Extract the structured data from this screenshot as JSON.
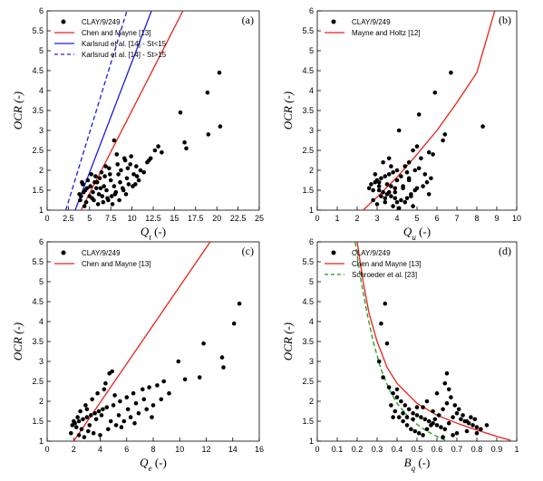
{
  "chart_data": [
    {
      "type": "scatter",
      "panel_label": "(a)",
      "xlabel": "Q_t (-)",
      "xlabel_main": "Q",
      "xlabel_sub": "t",
      "xlabel_unit": " (-)",
      "ylabel": "OCR (-)",
      "xlim": [
        0,
        25
      ],
      "ylim": [
        1,
        6
      ],
      "xticks": [
        "0",
        "2.5",
        "5",
        "7.5",
        "10",
        "12.5",
        "15",
        "17.5",
        "20",
        "22.5",
        "25"
      ],
      "yticks": [
        "1",
        "1.5",
        "2",
        "2.5",
        "3",
        "3.5",
        "4",
        "4.5",
        "5",
        "5.5",
        "6"
      ],
      "legend_position": "top-left",
      "series": [
        {
          "name": "CLAY/9/249",
          "kind": "points",
          "color": "#000000",
          "x": [
            20.3,
            18.9,
            15.7,
            20.4,
            16.2,
            16.4,
            19.0,
            12.7,
            13.1,
            13.5,
            12.2,
            7.9,
            8.2,
            9.1,
            11.8,
            10.5,
            9.8,
            8.7,
            7.4,
            6.8,
            6.2,
            5.6,
            5.1,
            4.7,
            4.3,
            4.0,
            3.9,
            4.6,
            5.3,
            6.1,
            7.0,
            7.9,
            8.6,
            9.4,
            10.2,
            11.0,
            10.8,
            9.6,
            8.9,
            8.1,
            7.6,
            7.2,
            6.6,
            6.0,
            5.5,
            5.0,
            4.5,
            4.2,
            4.8,
            5.7,
            6.4,
            7.3,
            8.3,
            9.2,
            9.9,
            10.6,
            11.4,
            12.0,
            9.0,
            8.0,
            7.1,
            6.3,
            5.4,
            4.4,
            3.8,
            4.1,
            5.2,
            6.9,
            7.7,
            8.5,
            9.3,
            10.1,
            6.7,
            5.9,
            5.8,
            6.5,
            7.5,
            8.4,
            9.5,
            10.4
          ],
          "y": [
            4.45,
            3.95,
            3.45,
            3.1,
            2.7,
            2.55,
            2.9,
            2.5,
            2.6,
            2.45,
            2.3,
            2.75,
            2.4,
            2.3,
            2.2,
            2.1,
            2.15,
            2.0,
            1.9,
            1.85,
            1.8,
            1.7,
            1.6,
            1.55,
            1.45,
            1.35,
            1.25,
            1.2,
            1.3,
            1.4,
            1.5,
            1.6,
            1.7,
            1.8,
            1.9,
            2.0,
            1.75,
            1.65,
            1.55,
            1.45,
            1.35,
            1.25,
            1.2,
            1.15,
            1.25,
            1.35,
            1.5,
            1.65,
            1.75,
            1.85,
            1.95,
            2.05,
            2.15,
            2.25,
            2.35,
            1.85,
            1.95,
            2.25,
            1.5,
            1.4,
            1.3,
            1.55,
            1.45,
            1.1,
            1.4,
            1.7,
            1.9,
            2.1,
            1.15,
            1.25,
            1.4,
            1.6,
            1.6,
            1.7,
            1.55,
            1.35,
            1.75,
            1.9,
            2.05,
            1.65
          ]
        },
        {
          "name": "Chen and Mayne [13]",
          "kind": "line",
          "style": "solid",
          "color": "#e8201a",
          "x": [
            4.0,
            16.0
          ],
          "y": [
            1.0,
            6.0
          ]
        },
        {
          "name": "Karlsrud et al. [14] - St<15",
          "kind": "line",
          "style": "solid",
          "color": "#1a1ae6",
          "x": [
            3.3,
            12.3
          ],
          "y": [
            1.0,
            6.0
          ]
        },
        {
          "name": "Karlsrud et al. [14] - St>15",
          "kind": "line",
          "style": "dashed",
          "color": "#1a1ae6",
          "x": [
            2.2,
            9.4
          ],
          "y": [
            1.0,
            6.0
          ]
        }
      ]
    },
    {
      "type": "scatter",
      "panel_label": "(b)",
      "xlabel": "Q_u (-)",
      "xlabel_main": "Q",
      "xlabel_sub": "u",
      "xlabel_unit": " (-)",
      "ylabel": "OCR (-)",
      "xlim": [
        0,
        10
      ],
      "ylim": [
        1,
        6
      ],
      "xticks": [
        "0",
        "1",
        "2",
        "3",
        "4",
        "5",
        "6",
        "7",
        "8",
        "9",
        "10"
      ],
      "yticks": [
        "1",
        "1.5",
        "2",
        "2.5",
        "3",
        "3.5",
        "4",
        "4.5",
        "5",
        "5.5",
        "6"
      ],
      "legend_position": "top-left",
      "series": [
        {
          "name": "CLAY/9/249",
          "kind": "points",
          "color": "#000000",
          "x": [
            6.7,
            5.9,
            5.1,
            8.3,
            6.4,
            6.3,
            4.1,
            5.0,
            4.8,
            5.6,
            5.2,
            4.6,
            4.4,
            4.0,
            3.8,
            3.6,
            3.4,
            3.2,
            3.0,
            2.9,
            2.7,
            2.6,
            3.1,
            3.3,
            3.5,
            3.7,
            3.9,
            4.2,
            4.5,
            4.7,
            4.9,
            5.3,
            5.5,
            5.7,
            4.3,
            3.9,
            3.6,
            3.2,
            2.8,
            3.0,
            3.4,
            3.8,
            4.1,
            4.4,
            4.7,
            5.0,
            5.4,
            4.6,
            4.2,
            3.7,
            3.3,
            2.9,
            3.1,
            3.5,
            4.0,
            4.5,
            4.9,
            5.8,
            5.6,
            3.6,
            4.8,
            3.9,
            4.3,
            3.1,
            2.8,
            3.4,
            4.0,
            4.6,
            5.1,
            3.7
          ],
          "y": [
            4.45,
            3.95,
            3.4,
            3.1,
            2.9,
            2.75,
            3.0,
            2.6,
            2.5,
            2.45,
            2.3,
            2.2,
            2.1,
            2.0,
            1.95,
            1.9,
            1.85,
            1.8,
            1.75,
            1.7,
            1.65,
            1.55,
            1.5,
            1.45,
            1.4,
            1.35,
            1.3,
            1.25,
            1.3,
            1.4,
            1.5,
            1.6,
            1.7,
            1.8,
            1.6,
            1.55,
            1.45,
            1.35,
            1.25,
            1.15,
            1.2,
            1.1,
            1.05,
            1.2,
            1.35,
            1.55,
            1.9,
            1.75,
            1.85,
            2.1,
            2.2,
            1.9,
            1.6,
            1.65,
            1.75,
            1.95,
            2.0,
            2.4,
            1.4,
            2.3,
            1.1,
            1.45,
            1.55,
            1.7,
            1.5,
            1.3,
            1.2,
            1.8,
            2.05,
            1.6
          ]
        },
        {
          "name": "Mayne and Holtz [12]",
          "kind": "curve",
          "style": "solid",
          "color": "#e8201a",
          "x": [
            2.3,
            3.0,
            4.0,
            5.0,
            6.0,
            7.0,
            8.0,
            8.9
          ],
          "y": [
            1.0,
            1.33,
            1.83,
            2.4,
            3.0,
            3.7,
            4.45,
            6.0
          ]
        }
      ]
    },
    {
      "type": "scatter",
      "panel_label": "(c)",
      "xlabel": "Q_e (-)",
      "xlabel_main": "Q",
      "xlabel_sub": "e",
      "xlabel_unit": " (-)",
      "ylabel": "OCR (-)",
      "xlim": [
        0,
        16
      ],
      "ylim": [
        1,
        6
      ],
      "xticks": [
        "0",
        "2",
        "4",
        "6",
        "8",
        "10",
        "12",
        "14",
        "16"
      ],
      "yticks": [
        "1",
        "1.5",
        "2",
        "2.5",
        "3",
        "3.5",
        "4",
        "4.5",
        "5",
        "5.5",
        "6"
      ],
      "legend_position": "top-left",
      "series": [
        {
          "name": "CLAY/9/249",
          "kind": "points",
          "color": "#000000",
          "x": [
            14.5,
            14.1,
            11.8,
            13.2,
            13.3,
            9.9,
            11.5,
            10.4,
            8.8,
            8.3,
            7.7,
            7.2,
            6.5,
            6.0,
            5.5,
            5.0,
            4.5,
            4.2,
            3.9,
            3.6,
            3.3,
            3.0,
            2.7,
            2.4,
            2.1,
            1.9,
            2.2,
            2.6,
            3.1,
            3.5,
            4.0,
            4.6,
            5.2,
            5.8,
            6.3,
            6.9,
            7.5,
            8.0,
            4.9,
            4.7,
            4.4,
            3.8,
            3.4,
            2.9,
            2.5,
            2.3,
            2.0,
            1.8,
            2.8,
            3.2,
            3.7,
            4.1,
            4.8,
            5.4,
            6.1,
            6.7,
            7.3,
            9.2,
            8.6,
            5.6,
            3.0,
            2.4,
            4.3,
            5.1,
            6.6,
            7.9
          ],
          "y": [
            4.45,
            3.95,
            3.45,
            3.1,
            2.85,
            3.0,
            2.6,
            2.55,
            2.5,
            2.4,
            2.35,
            2.3,
            2.2,
            2.1,
            2.0,
            1.9,
            1.85,
            1.8,
            1.75,
            1.7,
            1.65,
            1.6,
            1.55,
            1.5,
            1.45,
            1.4,
            1.35,
            1.3,
            1.25,
            1.2,
            1.15,
            1.3,
            1.4,
            1.5,
            1.6,
            1.7,
            1.8,
            1.9,
            2.75,
            2.7,
            2.45,
            2.2,
            2.05,
            1.9,
            1.75,
            1.6,
            1.5,
            1.2,
            1.1,
            1.4,
            1.55,
            1.65,
            1.5,
            1.65,
            1.8,
            1.95,
            2.05,
            2.2,
            2.05,
            1.35,
            1.8,
            1.15,
            2.3,
            2.15,
            1.45,
            1.6
          ]
        },
        {
          "name": "Chen and Mayne [13]",
          "kind": "line",
          "style": "solid",
          "color": "#e8201a",
          "x": [
            2.0,
            12.3
          ],
          "y": [
            1.0,
            6.0
          ]
        }
      ]
    },
    {
      "type": "scatter",
      "panel_label": "(d)",
      "xlabel": "B_q (-)",
      "xlabel_main": "B",
      "xlabel_sub": "q",
      "xlabel_unit": " (-)",
      "ylabel": "OCR (-)",
      "xlim": [
        0,
        1
      ],
      "ylim": [
        1,
        6
      ],
      "xticks": [
        "0",
        "0.1",
        "0.2",
        "0.3",
        "0.4",
        "0.5",
        "0.6",
        "0.7",
        "0.8",
        "0.9",
        "1"
      ],
      "yticks": [
        "1",
        "1.5",
        "2",
        "2.5",
        "3",
        "3.5",
        "4",
        "4.5",
        "5",
        "5.5",
        "6"
      ],
      "legend_position": "top-right",
      "series": [
        {
          "name": "CLAY/9/249",
          "kind": "points",
          "color": "#000000",
          "x": [
            0.34,
            0.32,
            0.35,
            0.31,
            0.33,
            0.36,
            0.38,
            0.4,
            0.42,
            0.44,
            0.46,
            0.48,
            0.5,
            0.52,
            0.54,
            0.56,
            0.58,
            0.6,
            0.62,
            0.64,
            0.66,
            0.68,
            0.7,
            0.72,
            0.74,
            0.76,
            0.78,
            0.8,
            0.82,
            0.85,
            0.37,
            0.39,
            0.41,
            0.43,
            0.45,
            0.47,
            0.49,
            0.51,
            0.53,
            0.55,
            0.57,
            0.59,
            0.61,
            0.63,
            0.65,
            0.67,
            0.69,
            0.71,
            0.73,
            0.75,
            0.77,
            0.79,
            0.65,
            0.64,
            0.66,
            0.6,
            0.55,
            0.5,
            0.45,
            0.4,
            0.7,
            0.75,
            0.8,
            0.68,
            0.58,
            0.48,
            0.38,
            0.43,
            0.53,
            0.63
          ],
          "y": [
            4.45,
            3.95,
            3.45,
            3.0,
            2.6,
            2.35,
            2.2,
            2.1,
            2.0,
            1.9,
            1.8,
            1.7,
            1.65,
            1.6,
            1.55,
            1.5,
            1.45,
            1.4,
            1.35,
            1.3,
            1.45,
            1.6,
            1.7,
            1.55,
            1.5,
            1.45,
            1.4,
            1.35,
            1.3,
            1.4,
            1.9,
            1.75,
            1.6,
            1.5,
            1.4,
            1.3,
            1.25,
            1.2,
            1.15,
            1.3,
            1.4,
            1.55,
            1.65,
            1.8,
            1.95,
            2.1,
            1.9,
            1.8,
            1.65,
            1.5,
            1.6,
            1.55,
            2.7,
            2.45,
            2.3,
            2.2,
            2.0,
            1.85,
            1.6,
            2.3,
            1.2,
            1.25,
            1.2,
            1.15,
            1.75,
            1.55,
            1.6,
            1.7,
            1.85,
            1.1
          ]
        },
        {
          "name": "Chen and Mayne [13]",
          "kind": "curve",
          "style": "solid",
          "color": "#e8201a",
          "x": [
            0.2,
            0.23,
            0.26,
            0.3,
            0.35,
            0.4,
            0.5,
            0.6,
            0.7,
            0.8,
            0.9,
            0.97
          ],
          "y": [
            6.0,
            5.0,
            4.2,
            3.5,
            2.85,
            2.45,
            1.95,
            1.65,
            1.45,
            1.28,
            1.12,
            1.02
          ]
        },
        {
          "name": "Schroeder et al. [23]",
          "kind": "curve",
          "style": "dashed",
          "color": "#1a9a1a",
          "x": [
            0.19,
            0.22,
            0.25,
            0.28,
            0.32,
            0.36,
            0.4,
            0.45,
            0.5,
            0.55,
            0.6,
            0.65
          ],
          "y": [
            6.0,
            5.0,
            4.2,
            3.5,
            2.8,
            2.3,
            1.95,
            1.65,
            1.42,
            1.25,
            1.12,
            1.0
          ]
        }
      ]
    }
  ]
}
